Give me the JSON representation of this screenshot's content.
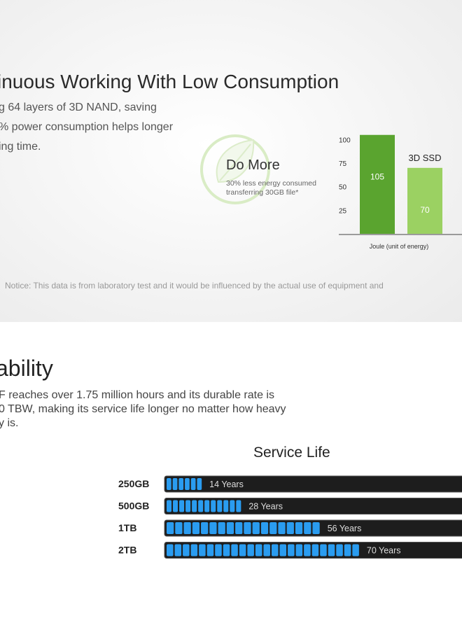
{
  "top": {
    "title": "inuous Working With Low Consumption",
    "lines": [
      "g 64 layers of 3D NAND, saving",
      "% power consumption helps longer",
      "ing time."
    ],
    "do_more": "Do More",
    "do_more_sub_1": "30% less energy consumed",
    "do_more_sub_2": "transferring 30GB file*",
    "notice": "Notice: This data is from laboratory test and it would be influenced by the actual use of equipment and"
  },
  "bottom": {
    "title": "ability",
    "lines": [
      "F reaches over 1.75 million hours and its durable rate is",
      "0 TBW, making its service life longer no matter how heavy",
      "y is."
    ]
  },
  "colors": {
    "dark_green": "#5aa42f",
    "light_green": "#9bd162",
    "bar_blue": "#2a9cf0",
    "bar_track": "#1d1d1d"
  },
  "chart_data": [
    {
      "type": "bar",
      "categories": [
        "",
        "3D SSD"
      ],
      "values": [
        105,
        70
      ],
      "yticks": [
        25,
        50,
        75,
        100
      ],
      "ylim": [
        0,
        110
      ],
      "xlabel": "Joule (unit of energy)",
      "colors": [
        "#5aa42f",
        "#9bd162"
      ]
    },
    {
      "type": "bar",
      "orientation": "horizontal",
      "title": "Service Life",
      "categories": [
        "250GB",
        "500GB",
        "1TB",
        "2TB"
      ],
      "values": [
        14,
        28,
        56,
        70
      ],
      "labels": [
        "14 Years",
        "28 Years",
        "56 Years",
        "70 Years"
      ],
      "segments": [
        6,
        12,
        18,
        24
      ],
      "xlim": [
        0,
        80
      ]
    }
  ]
}
